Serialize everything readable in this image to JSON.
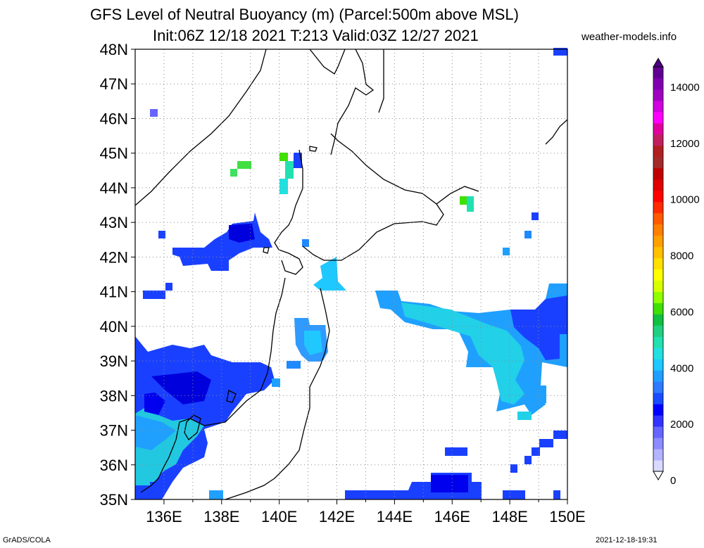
{
  "title_line1": "GFS Level of Neutral Buoyancy (m) (Parcel:500m above MSL)",
  "title_line2": "Init:06Z 12/18 2021 T:213 Valid:03Z 12/27 2021",
  "site": "weather-models.info",
  "footer_left": "GrADS/COLA",
  "footer_right": "2021-12-18-19:31",
  "lat_labels": [
    "48N",
    "47N",
    "46N",
    "45N",
    "44N",
    "43N",
    "42N",
    "41N",
    "40N",
    "39N",
    "38N",
    "37N",
    "36N",
    "35N"
  ],
  "lon_labels": [
    "136E",
    "138E",
    "140E",
    "142E",
    "144E",
    "146E",
    "148E",
    "150E"
  ],
  "colorbar": {
    "labels": [
      "0",
      "2000",
      "4000",
      "6000",
      "8000",
      "10000",
      "12000",
      "14000"
    ],
    "colors": [
      "#d9d9ff",
      "#b3b3ff",
      "#8c8cff",
      "#6666ff",
      "#3333ff",
      "#0000ff",
      "#1a4cff",
      "#2f7aff",
      "#1fa0ff",
      "#1fc8ff",
      "#22e0e0",
      "#22e0b0",
      "#20d080",
      "#10c040",
      "#40e000",
      "#90ff00",
      "#d8ff00",
      "#ffff00",
      "#ffe000",
      "#ffc000",
      "#ffa000",
      "#ff8000",
      "#ff5a00",
      "#ff2a00",
      "#ff0000",
      "#e00000",
      "#c00000",
      "#a52a2a",
      "#b02020",
      "#c02060",
      "#e000a0",
      "#ff00ff",
      "#d000e0",
      "#a000c0",
      "#8000b0",
      "#600090"
    ]
  },
  "map": {
    "lon_range": [
      135,
      150
    ],
    "lat_range": [
      35,
      48
    ],
    "cells": [
      {
        "lon": 136.0,
        "lat": 39.25,
        "v": 1800
      },
      {
        "lon": 135.75,
        "lat": 38.25,
        "v": 1400
      },
      {
        "lon": 136.5,
        "lat": 36.8,
        "v": 2600
      },
      {
        "lon": 146.3,
        "lat": 43.6,
        "v": 5200
      },
      {
        "lon": 140.2,
        "lat": 44.7,
        "v": 5000
      },
      {
        "lon": 139.0,
        "lat": 44.6,
        "v": 4600
      },
      {
        "lon": 136.0,
        "lat": 46.1,
        "v": 1500
      },
      {
        "lon": 141.3,
        "lat": 39.5,
        "v": 2900
      },
      {
        "lon": 148.0,
        "lat": 38.5,
        "v": 3100
      },
      {
        "lon": 146.0,
        "lat": 40.0,
        "v": 2800
      }
    ]
  }
}
